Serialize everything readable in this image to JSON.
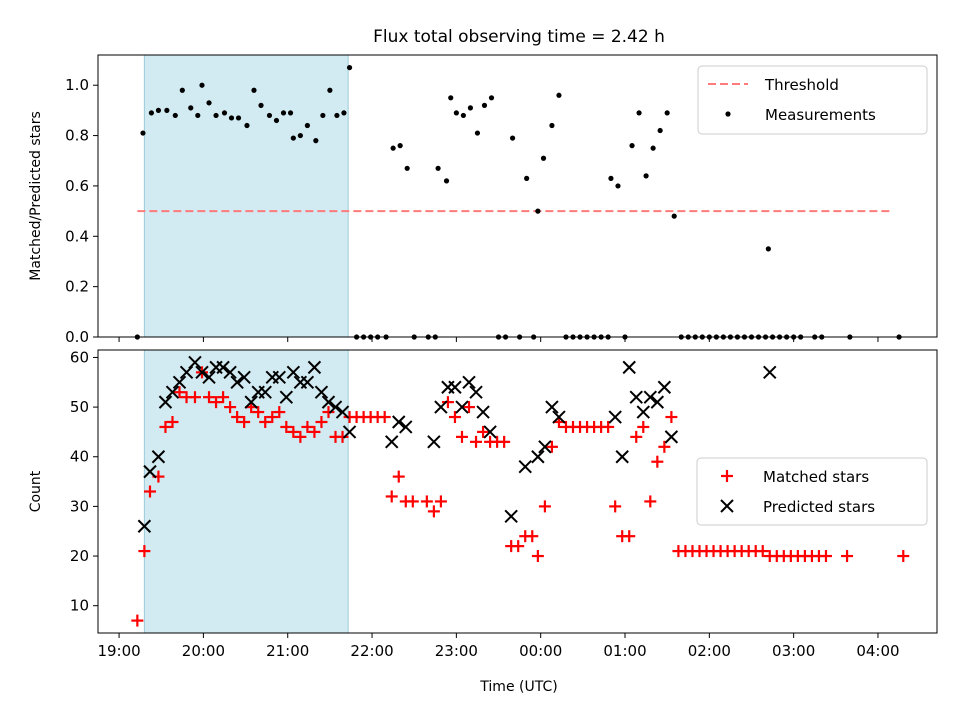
{
  "title": "Flux total observing time = 2.42 h",
  "colors": {
    "threshold": "#ff7b7b",
    "measurement": "#000000",
    "matched": "#ff0000",
    "predicted": "#000000",
    "highlight": "#add8e6"
  },
  "x_axis": {
    "label": "Time (UTC)",
    "ticks": [
      "19:00",
      "20:00",
      "21:00",
      "22:00",
      "23:00",
      "00:00",
      "01:00",
      "02:00",
      "03:00",
      "04:00"
    ]
  },
  "chart_data": [
    {
      "type": "scatter",
      "ylabel": "Matched/Predicted stars",
      "ylim": [
        0,
        1.12
      ],
      "yticks": [
        "0.0",
        "0.2",
        "0.4",
        "0.6",
        "0.8",
        "1.0"
      ],
      "xlim_hours": [
        18.75,
        28.7
      ],
      "highlight_span": [
        "19:18",
        "21:43"
      ],
      "legend": {
        "position": "top-right",
        "entries": [
          "Threshold",
          "Measurements"
        ]
      },
      "threshold": {
        "name": "Threshold",
        "x": [
          "19:13",
          "28:10"
        ],
        "y": 0.5
      },
      "series": [
        {
          "name": "Measurements",
          "points": [
            [
              "19:13",
              0.0
            ],
            [
              "19:17",
              0.81
            ],
            [
              "19:23",
              0.89
            ],
            [
              "19:28",
              0.9
            ],
            [
              "19:34",
              0.9
            ],
            [
              "19:40",
              0.88
            ],
            [
              "19:45",
              0.98
            ],
            [
              "19:51",
              0.91
            ],
            [
              "19:56",
              0.88
            ],
            [
              "19:59",
              1.0
            ],
            [
              "20:04",
              0.93
            ],
            [
              "20:09",
              0.88
            ],
            [
              "20:15",
              0.89
            ],
            [
              "20:20",
              0.87
            ],
            [
              "20:25",
              0.87
            ],
            [
              "20:31",
              0.84
            ],
            [
              "20:36",
              0.98
            ],
            [
              "20:41",
              0.92
            ],
            [
              "20:47",
              0.88
            ],
            [
              "20:52",
              0.86
            ],
            [
              "20:57",
              0.89
            ],
            [
              "21:02",
              0.89
            ],
            [
              "21:04",
              0.79
            ],
            [
              "21:09",
              0.8
            ],
            [
              "21:14",
              0.84
            ],
            [
              "21:20",
              0.78
            ],
            [
              "21:25",
              0.88
            ],
            [
              "21:30",
              0.98
            ],
            [
              "21:35",
              0.88
            ],
            [
              "21:40",
              0.89
            ],
            [
              "21:44",
              1.07
            ],
            [
              "21:49",
              0.0
            ],
            [
              "21:54",
              0.0
            ],
            [
              "21:59",
              0.0
            ],
            [
              "22:04",
              0.0
            ],
            [
              "22:10",
              0.0
            ],
            [
              "22:15",
              0.75
            ],
            [
              "22:20",
              0.76
            ],
            [
              "22:25",
              0.67
            ],
            [
              "22:30",
              0.0
            ],
            [
              "22:40",
              0.0
            ],
            [
              "22:45",
              0.0
            ],
            [
              "22:47",
              0.67
            ],
            [
              "22:53",
              0.62
            ],
            [
              "22:56",
              0.95
            ],
            [
              "23:00",
              0.89
            ],
            [
              "23:05",
              0.88
            ],
            [
              "23:10",
              0.91
            ],
            [
              "23:15",
              0.81
            ],
            [
              "23:20",
              0.92
            ],
            [
              "23:25",
              0.95
            ],
            [
              "23:30",
              0.0
            ],
            [
              "23:35",
              0.0
            ],
            [
              "23:40",
              0.79
            ],
            [
              "23:45",
              0.0
            ],
            [
              "23:50",
              0.63
            ],
            [
              "23:55",
              0.0
            ],
            [
              "23:58",
              0.5
            ],
            [
              "00:02",
              0.71
            ],
            [
              "00:08",
              0.84
            ],
            [
              "00:13",
              0.96
            ],
            [
              "00:18",
              0.0
            ],
            [
              "00:23",
              0.0
            ],
            [
              "00:28",
              0.0
            ],
            [
              "00:33",
              0.0
            ],
            [
              "00:38",
              0.0
            ],
            [
              "00:43",
              0.0
            ],
            [
              "00:48",
              0.0
            ],
            [
              "00:50",
              0.63
            ],
            [
              "00:55",
              0.6
            ],
            [
              "01:00",
              0.0
            ],
            [
              "01:05",
              0.76
            ],
            [
              "01:10",
              0.89
            ],
            [
              "01:15",
              0.64
            ],
            [
              "01:20",
              0.75
            ],
            [
              "01:25",
              0.82
            ],
            [
              "01:30",
              0.89
            ],
            [
              "01:35",
              0.48
            ],
            [
              "01:40",
              0.0
            ],
            [
              "01:45",
              0.0
            ],
            [
              "01:50",
              0.0
            ],
            [
              "01:55",
              0.0
            ],
            [
              "02:00",
              0.0
            ],
            [
              "02:05",
              0.0
            ],
            [
              "02:10",
              0.0
            ],
            [
              "02:15",
              0.0
            ],
            [
              "02:20",
              0.0
            ],
            [
              "02:25",
              0.0
            ],
            [
              "02:30",
              0.0
            ],
            [
              "02:35",
              0.0
            ],
            [
              "02:40",
              0.0
            ],
            [
              "02:45",
              0.0
            ],
            [
              "02:42",
              0.35
            ],
            [
              "02:50",
              0.0
            ],
            [
              "02:55",
              0.0
            ],
            [
              "03:00",
              0.0
            ],
            [
              "03:05",
              0.0
            ],
            [
              "03:15",
              0.0
            ],
            [
              "03:20",
              0.0
            ],
            [
              "03:40",
              0.0
            ],
            [
              "04:15",
              0.0
            ]
          ]
        }
      ]
    },
    {
      "type": "scatter",
      "ylabel": "Count",
      "ylim": [
        4.5,
        61.5
      ],
      "yticks": [
        "10",
        "20",
        "30",
        "40",
        "50",
        "60"
      ],
      "xlim_hours": [
        18.75,
        28.7
      ],
      "highlight_span": [
        "19:18",
        "21:43"
      ],
      "legend": {
        "position": "center-right",
        "entries": [
          "Matched stars",
          "Predicted stars"
        ]
      },
      "series": [
        {
          "name": "Matched stars",
          "marker": "plus",
          "points": [
            [
              "19:13",
              7
            ],
            [
              "19:18",
              21
            ],
            [
              "19:22",
              33
            ],
            [
              "19:28",
              36
            ],
            [
              "19:33",
              46
            ],
            [
              "19:38",
              47
            ],
            [
              "19:43",
              53
            ],
            [
              "19:48",
              52
            ],
            [
              "19:54",
              52
            ],
            [
              "19:59",
              57
            ],
            [
              "20:04",
              52
            ],
            [
              "20:09",
              51
            ],
            [
              "20:14",
              52
            ],
            [
              "20:19",
              50
            ],
            [
              "20:24",
              48
            ],
            [
              "20:29",
              47
            ],
            [
              "20:34",
              50
            ],
            [
              "20:39",
              49
            ],
            [
              "20:44",
              47
            ],
            [
              "20:49",
              48
            ],
            [
              "20:54",
              49
            ],
            [
              "20:59",
              46
            ],
            [
              "21:04",
              45
            ],
            [
              "21:09",
              44
            ],
            [
              "21:14",
              46
            ],
            [
              "21:19",
              45
            ],
            [
              "21:24",
              47
            ],
            [
              "21:29",
              49
            ],
            [
              "21:34",
              44
            ],
            [
              "21:39",
              44
            ],
            [
              "21:44",
              48
            ],
            [
              "21:49",
              48
            ],
            [
              "21:54",
              48
            ],
            [
              "21:59",
              48
            ],
            [
              "22:04",
              48
            ],
            [
              "22:09",
              48
            ],
            [
              "22:14",
              32
            ],
            [
              "22:19",
              36
            ],
            [
              "22:24",
              31
            ],
            [
              "22:29",
              31
            ],
            [
              "22:39",
              31
            ],
            [
              "22:44",
              29
            ],
            [
              "22:49",
              31
            ],
            [
              "22:54",
              51
            ],
            [
              "22:59",
              48
            ],
            [
              "23:04",
              44
            ],
            [
              "23:09",
              50
            ],
            [
              "23:14",
              43
            ],
            [
              "23:19",
              45
            ],
            [
              "23:24",
              43
            ],
            [
              "23:29",
              43
            ],
            [
              "23:34",
              43
            ],
            [
              "23:39",
              22
            ],
            [
              "23:44",
              22
            ],
            [
              "23:49",
              24
            ],
            [
              "23:54",
              24
            ],
            [
              "23:58",
              20
            ],
            [
              "00:03",
              30
            ],
            [
              "00:08",
              42
            ],
            [
              "00:13",
              47
            ],
            [
              "00:18",
              46
            ],
            [
              "00:23",
              46
            ],
            [
              "00:28",
              46
            ],
            [
              "00:33",
              46
            ],
            [
              "00:38",
              46
            ],
            [
              "00:43",
              46
            ],
            [
              "00:48",
              46
            ],
            [
              "00:53",
              30
            ],
            [
              "00:58",
              24
            ],
            [
              "01:03",
              24
            ],
            [
              "01:08",
              44
            ],
            [
              "01:13",
              46
            ],
            [
              "01:18",
              31
            ],
            [
              "01:23",
              39
            ],
            [
              "01:28",
              42
            ],
            [
              "01:33",
              48
            ],
            [
              "01:38",
              21
            ],
            [
              "01:43",
              21
            ],
            [
              "01:48",
              21
            ],
            [
              "01:53",
              21
            ],
            [
              "01:58",
              21
            ],
            [
              "02:03",
              21
            ],
            [
              "02:08",
              21
            ],
            [
              "02:13",
              21
            ],
            [
              "02:18",
              21
            ],
            [
              "02:23",
              21
            ],
            [
              "02:28",
              21
            ],
            [
              "02:33",
              21
            ],
            [
              "02:38",
              21
            ],
            [
              "02:43",
              20
            ],
            [
              "02:48",
              20
            ],
            [
              "02:53",
              20
            ],
            [
              "02:58",
              20
            ],
            [
              "03:03",
              20
            ],
            [
              "03:08",
              20
            ],
            [
              "03:13",
              20
            ],
            [
              "03:18",
              20
            ],
            [
              "03:23",
              20
            ],
            [
              "03:38",
              20
            ],
            [
              "04:18",
              20
            ]
          ]
        },
        {
          "name": "Predicted stars",
          "marker": "x",
          "points": [
            [
              "19:18",
              26
            ],
            [
              "19:22",
              37
            ],
            [
              "19:28",
              40
            ],
            [
              "19:33",
              51
            ],
            [
              "19:38",
              53
            ],
            [
              "19:43",
              55
            ],
            [
              "19:48",
              57
            ],
            [
              "19:54",
              59
            ],
            [
              "19:59",
              57
            ],
            [
              "20:04",
              56
            ],
            [
              "20:09",
              58
            ],
            [
              "20:14",
              58
            ],
            [
              "20:19",
              57
            ],
            [
              "20:24",
              55
            ],
            [
              "20:29",
              56
            ],
            [
              "20:34",
              51
            ],
            [
              "20:39",
              53
            ],
            [
              "20:44",
              53
            ],
            [
              "20:49",
              56
            ],
            [
              "20:54",
              56
            ],
            [
              "20:59",
              52
            ],
            [
              "21:04",
              57
            ],
            [
              "21:09",
              55
            ],
            [
              "21:14",
              55
            ],
            [
              "21:19",
              58
            ],
            [
              "21:24",
              53
            ],
            [
              "21:29",
              51
            ],
            [
              "21:34",
              50
            ],
            [
              "21:39",
              49
            ],
            [
              "21:44",
              45
            ],
            [
              "22:14",
              43
            ],
            [
              "22:19",
              47
            ],
            [
              "22:24",
              46
            ],
            [
              "22:44",
              43
            ],
            [
              "22:49",
              50
            ],
            [
              "22:54",
              54
            ],
            [
              "22:59",
              54
            ],
            [
              "23:04",
              50
            ],
            [
              "23:09",
              55
            ],
            [
              "23:14",
              53
            ],
            [
              "23:19",
              49
            ],
            [
              "23:24",
              45
            ],
            [
              "23:39",
              28
            ],
            [
              "23:49",
              38
            ],
            [
              "23:58",
              40
            ],
            [
              "00:03",
              42
            ],
            [
              "00:08",
              50
            ],
            [
              "00:13",
              48
            ],
            [
              "00:53",
              48
            ],
            [
              "00:58",
              40
            ],
            [
              "01:03",
              58
            ],
            [
              "01:08",
              52
            ],
            [
              "01:13",
              49
            ],
            [
              "01:18",
              52
            ],
            [
              "01:23",
              51
            ],
            [
              "01:28",
              54
            ],
            [
              "01:33",
              44
            ],
            [
              "02:43",
              57
            ]
          ]
        }
      ]
    }
  ]
}
